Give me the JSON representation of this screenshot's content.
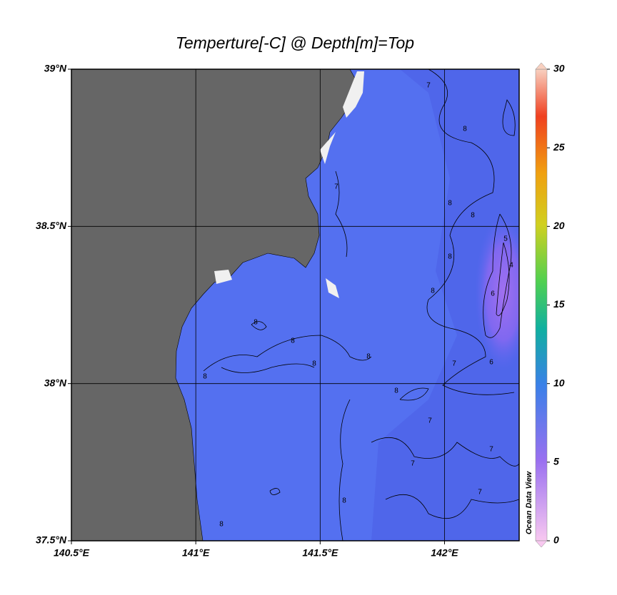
{
  "map": {
    "title": "Temperture[-C] @ Depth[m]=Top",
    "xlim": [
      140.5,
      142.3
    ],
    "ylim": [
      37.5,
      39
    ],
    "lon_ticks": [
      {
        "value": 140.5,
        "label": "140.5°E"
      },
      {
        "value": 141,
        "label": "141°E"
      },
      {
        "value": 141.5,
        "label": "141.5°E"
      },
      {
        "value": 142,
        "label": "142°E"
      }
    ],
    "lat_ticks": [
      {
        "value": 37.5,
        "label": "37.5°N"
      },
      {
        "value": 38,
        "label": "38°N"
      },
      {
        "value": 38.5,
        "label": "38.5°N"
      },
      {
        "value": 39,
        "label": "39°N"
      }
    ],
    "grid": true,
    "colorbar": {
      "lim": [
        0,
        30
      ],
      "ticks": [
        0,
        5,
        10,
        15,
        20,
        25,
        30
      ]
    },
    "watermark": "Ocean Data View",
    "contour_labels": [
      7,
      8,
      7,
      8,
      8,
      8,
      8,
      8,
      8,
      8,
      8,
      8,
      7,
      7,
      7,
      7,
      8,
      8,
      8,
      6,
      5,
      4,
      6,
      7
    ]
  }
}
